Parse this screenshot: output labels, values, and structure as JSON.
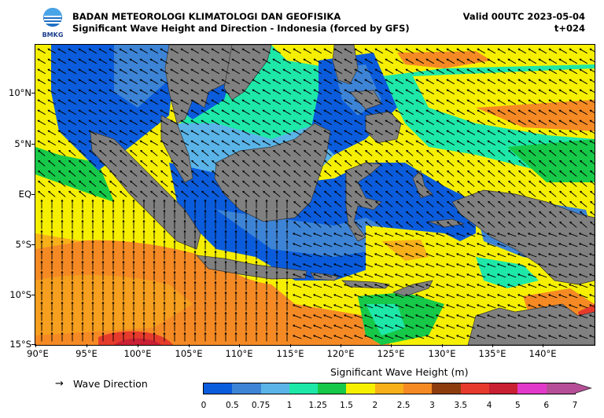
{
  "header": {
    "agency": "BADAN METEOROLOGI KLIMATOLOGI DAN GEOFISIKA",
    "subtitle": "Significant Wave Height and Direction - Indonesia (forced by GFS)",
    "valid": "Valid 00UTC 2023-05-04",
    "lead": "t+024",
    "logo_text": "BMKG"
  },
  "map": {
    "lat_labels": [
      "10°N",
      "5°N",
      "EQ",
      "5°S",
      "10°S",
      "15°S"
    ],
    "lon_labels": [
      "90°E",
      "95°E",
      "100°E",
      "105°E",
      "110°E",
      "115°E",
      "120°E",
      "125°E",
      "130°E",
      "135°E",
      "140°E"
    ],
    "land_color": "#808080",
    "sea_base_color": "#f6f000"
  },
  "legend": {
    "arrow_symbol": "→",
    "wave_direction_label": "Wave Direction",
    "colorbar_title": "Significant Wave Height (m)",
    "ticks": [
      "0",
      "0.5",
      "0.75",
      "1",
      "1.25",
      "1.5",
      "2",
      "2.5",
      "3",
      "3.5",
      "4",
      "5",
      "6",
      "7"
    ],
    "colors": [
      "#0a5cdc",
      "#3d84d6",
      "#5ab4e8",
      "#1ee8a8",
      "#16c948",
      "#f6f000",
      "#f7b01a",
      "#f58a24",
      "#8c3d0e",
      "#e63b2c",
      "#c92033",
      "#e23ac8",
      "#b64e97"
    ]
  }
}
